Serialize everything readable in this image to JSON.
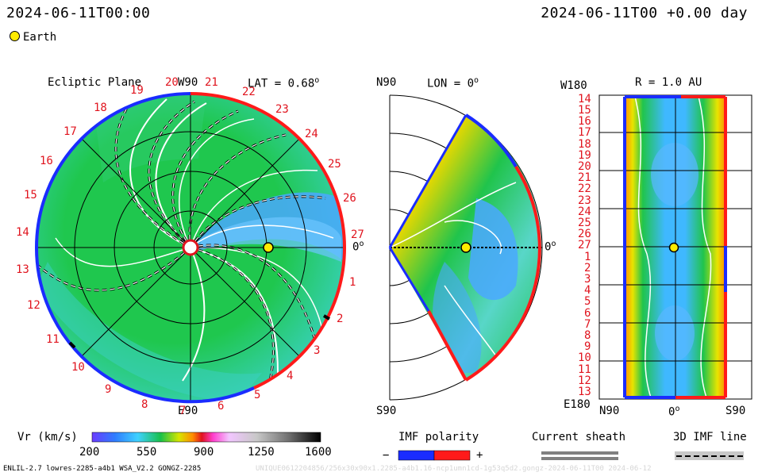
{
  "header": {
    "left_datetime": "2024-06-11T00:00",
    "right_datetime": "2024-06-11T00 +0.00 day",
    "legend_earth": "Earth"
  },
  "ecliptic": {
    "title": "Ecliptic Plane",
    "top_label": "W90",
    "bottom_label": "E90",
    "lat_label": "LAT = 0.68",
    "lat_sup": "o",
    "right_label": "0",
    "right_sup": "o",
    "rotation_labels": [
      "19",
      "20",
      "21",
      "22",
      "23",
      "24",
      "25",
      "26",
      "27",
      "1",
      "2",
      "3",
      "4",
      "5",
      "6",
      "7",
      "8",
      "9",
      "10",
      "11",
      "12",
      "13",
      "14",
      "15",
      "16",
      "17",
      "18"
    ]
  },
  "meridional": {
    "top_label": "N90",
    "bottom_label": "S90",
    "lon_label": "LON = 0",
    "lon_sup": "o",
    "right_label": "0",
    "right_sup": "o"
  },
  "sphere": {
    "title": "R = 1.0 AU",
    "top_left": "W180",
    "bottom_left": "E180",
    "x_left": "N90",
    "x_mid": "0",
    "x_mid_sup": "o",
    "x_right": "S90",
    "row_labels": [
      "14",
      "15",
      "16",
      "17",
      "18",
      "19",
      "20",
      "21",
      "22",
      "23",
      "24",
      "25",
      "26",
      "27",
      "1",
      "2",
      "3",
      "4",
      "5",
      "6",
      "7",
      "8",
      "9",
      "10",
      "11",
      "12",
      "13"
    ]
  },
  "colorbar": {
    "label": "Vr (km/s)",
    "ticks": [
      "200",
      "550",
      "900",
      "1250",
      "1600"
    ]
  },
  "imf_legend": {
    "title": "IMF polarity",
    "minus": "−",
    "plus": "+",
    "sheath_title": "Current sheath",
    "line_title": "3D IMF line"
  },
  "footer": {
    "left": "ENLIL-2.7 lowres-2285-a4b1 WSA_V2.2 GONGZ-2285",
    "right": "UNIQUE0612204856/256x30x90x1.2285-a4b1.16-ncp1umn1cd-1g53q5d2.gongz-2024-06-11T00   2024-06-12"
  },
  "colors": {
    "positive": "#ff1a1a",
    "negative": "#1a2cff",
    "earth": "#ffeb00",
    "background_flow": "#19c24a",
    "fast_flow": "#ff8c00",
    "slow_flow": "#4aa8ff"
  }
}
